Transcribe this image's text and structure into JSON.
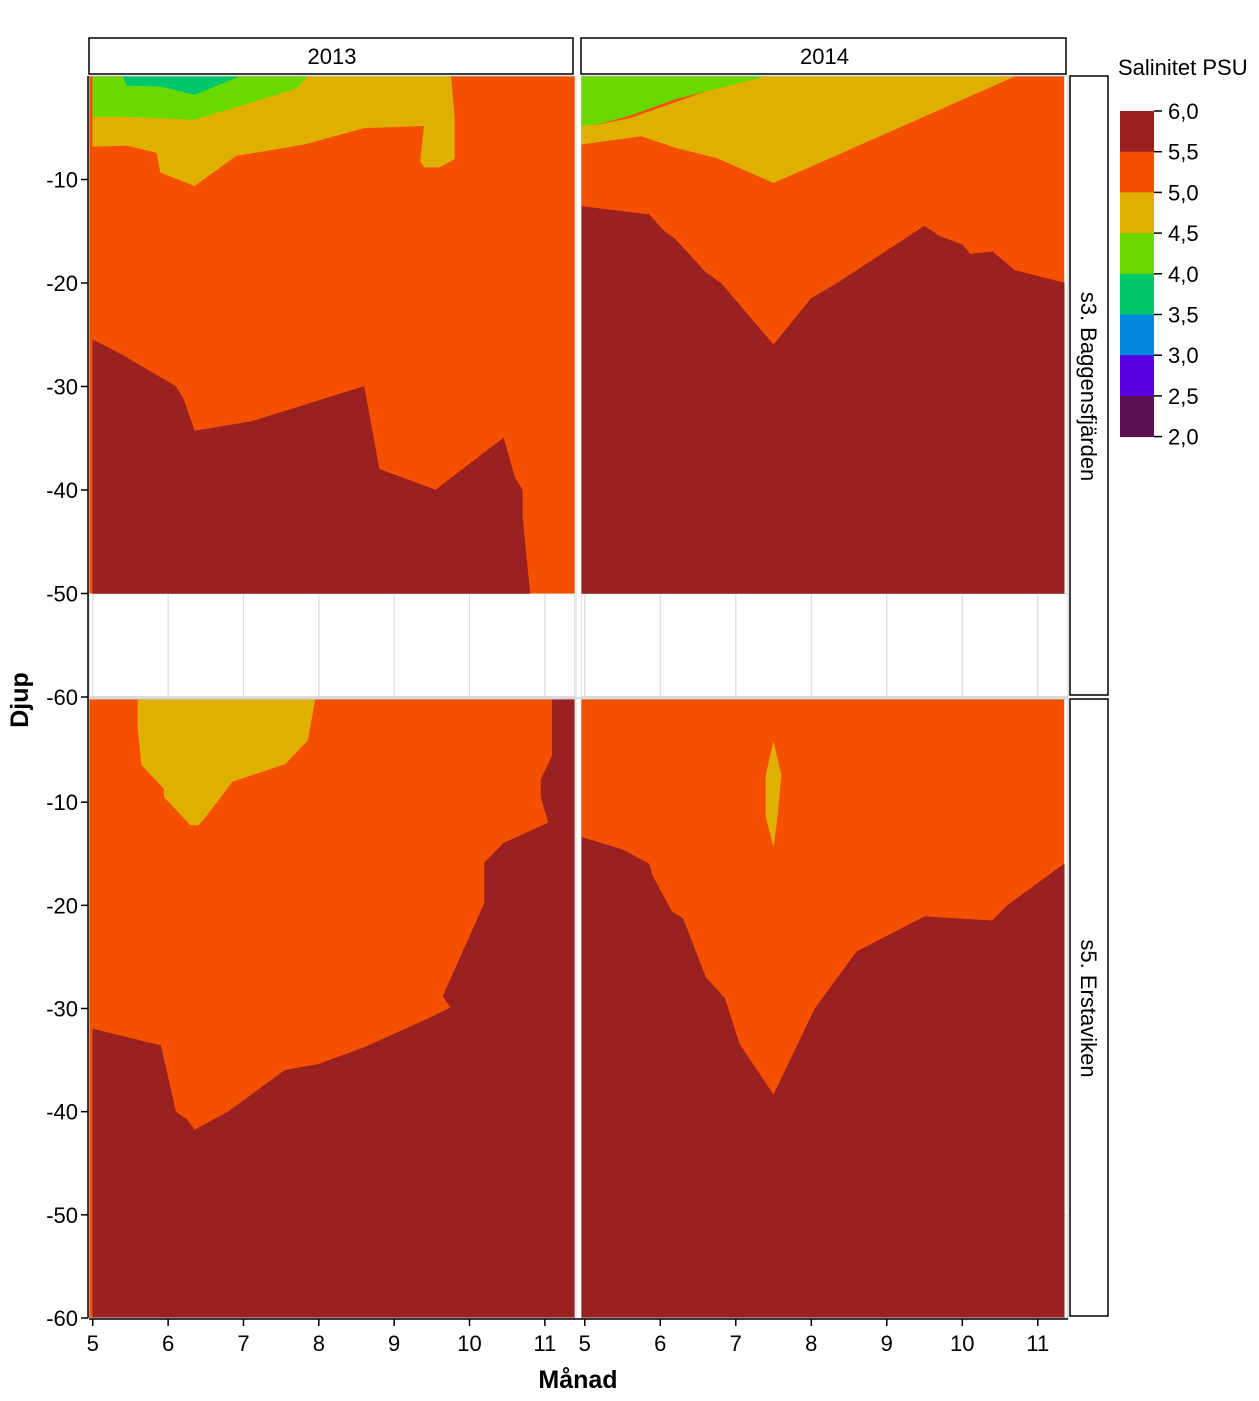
{
  "chart_data": {
    "type": "heatmap",
    "subtype": "filled-contour",
    "xlabel": "Månad",
    "ylabel": "Djup",
    "xlim": [
      4.95,
      11.4
    ],
    "ylim": [
      -60,
      0
    ],
    "x_ticks": [
      5,
      6,
      7,
      8,
      9,
      10,
      11
    ],
    "y_ticks": [
      -10,
      -20,
      -30,
      -40,
      -50,
      -60
    ],
    "legend": {
      "title": "Salinitet PSU",
      "placement": "right",
      "levels": [
        "6,0",
        "5,5",
        "5,0",
        "4,5",
        "4,0",
        "3,5",
        "3,0",
        "2,5",
        "2,0"
      ],
      "colors": [
        "#9b2121",
        "#f55000",
        "#e0b000",
        "#6ad900",
        "#00c86a",
        "#0088dd",
        "#5a00e0",
        "#5a1050"
      ]
    },
    "years": [
      "2013",
      "2014"
    ],
    "stations": [
      "s3. Baggensfjärden",
      "s5. Erstaviken"
    ],
    "panels": [
      {
        "year": "2013",
        "station": "s3. Baggensfjärden",
        "data_xmax": 11.4,
        "data_ymin": -50,
        "base_band": "5,0–5,5",
        "regions": [
          {
            "band": "5,5–6,0",
            "points": [
              [
                5,
                -25.5
              ],
              [
                5.4,
                -27
              ],
              [
                6.1,
                -30
              ],
              [
                6.2,
                -31.2
              ],
              [
                6.35,
                -34.3
              ],
              [
                7.1,
                -33.4
              ],
              [
                8.6,
                -30
              ],
              [
                8.8,
                -38
              ],
              [
                9.55,
                -40
              ],
              [
                10.45,
                -35
              ],
              [
                10.6,
                -38.8
              ],
              [
                10.7,
                -40
              ],
              [
                10.7,
                -42.5
              ],
              [
                10.8,
                -50
              ],
              [
                5,
                -50
              ]
            ]
          },
          {
            "band": "4,5–5,0",
            "points": [
              [
                5,
                0
              ],
              [
                9.75,
                0
              ],
              [
                9.8,
                -4
              ],
              [
                9.8,
                -8
              ],
              [
                9.6,
                -8.8
              ],
              [
                9.4,
                -8.8
              ],
              [
                9.35,
                -8.2
              ],
              [
                9.4,
                -4.8
              ],
              [
                8.6,
                -5
              ],
              [
                7.8,
                -6.6
              ],
              [
                6.9,
                -7.7
              ],
              [
                6.35,
                -10.6
              ],
              [
                5.9,
                -9.3
              ],
              [
                5.85,
                -7.4
              ],
              [
                5.45,
                -6.7
              ],
              [
                5,
                -6.8
              ]
            ]
          },
          {
            "band": "4,0–4,5",
            "points": [
              [
                5,
                0
              ],
              [
                7.85,
                0
              ],
              [
                7.7,
                -1.2
              ],
              [
                6.35,
                -4.2
              ],
              [
                5.4,
                -3.9
              ],
              [
                5,
                -3.9
              ]
            ]
          },
          {
            "band": "3,5–4,0",
            "points": [
              [
                5.4,
                0
              ],
              [
                6.95,
                0
              ],
              [
                6.35,
                -1.8
              ],
              [
                5.9,
                -1
              ],
              [
                5.45,
                -0.9
              ]
            ]
          }
        ]
      },
      {
        "year": "2014",
        "station": "s3. Baggensfjärden",
        "data_xmax": 11.35,
        "data_ymin": -50,
        "base_band": "5,0–5,5",
        "regions": [
          {
            "band": "5,5–6,0",
            "points": [
              [
                4.95,
                -12.6
              ],
              [
                5.85,
                -13.4
              ],
              [
                6.05,
                -15
              ],
              [
                6.2,
                -15.8
              ],
              [
                6.35,
                -17
              ],
              [
                6.6,
                -19
              ],
              [
                6.8,
                -20
              ],
              [
                7.15,
                -23
              ],
              [
                7.5,
                -26
              ],
              [
                8,
                -21.5
              ],
              [
                8.35,
                -20
              ],
              [
                9.5,
                -14.5
              ],
              [
                9.7,
                -15.5
              ],
              [
                10,
                -16.3
              ],
              [
                10.1,
                -17.2
              ],
              [
                10.4,
                -17
              ],
              [
                10.7,
                -18.8
              ],
              [
                11.35,
                -20
              ],
              [
                11.35,
                -50
              ],
              [
                4.95,
                -50
              ]
            ]
          },
          {
            "band": "4,5–5,0",
            "points": [
              [
                4.95,
                -4.8
              ],
              [
                5.2,
                -4.7
              ],
              [
                5.6,
                -4.1
              ],
              [
                6.3,
                -2.3
              ],
              [
                7.2,
                0
              ],
              [
                10.7,
                0
              ],
              [
                9.4,
                -4.2
              ],
              [
                8.1,
                -8.4
              ],
              [
                7.5,
                -10.3
              ],
              [
                6.75,
                -7.9
              ],
              [
                6.2,
                -6.9
              ],
              [
                5.75,
                -5.8
              ],
              [
                4.95,
                -6.6
              ]
            ]
          },
          {
            "band": "4,0–4,5",
            "points": [
              [
                4.95,
                0
              ],
              [
                7.4,
                0
              ],
              [
                6.2,
                -2.2
              ],
              [
                5.6,
                -3.8
              ],
              [
                5.2,
                -4.6
              ],
              [
                4.95,
                -4.8
              ]
            ]
          }
        ]
      },
      {
        "year": "2013",
        "station": "s5. Erstaviken",
        "data_xmax": 11.4,
        "data_ymin": -60,
        "base_band": "5,0–5,5",
        "regions": [
          {
            "band": "5,5–6,0",
            "points": [
              [
                5,
                -32
              ],
              [
                5.9,
                -33.6
              ],
              [
                6.1,
                -40
              ],
              [
                6.25,
                -40.8
              ],
              [
                6.35,
                -41.8
              ],
              [
                6.8,
                -40
              ],
              [
                7.55,
                -36
              ],
              [
                8,
                -35.4
              ],
              [
                8.6,
                -33.8
              ],
              [
                9.45,
                -31
              ],
              [
                9.75,
                -29.9
              ],
              [
                9.65,
                -28.8
              ],
              [
                10.2,
                -19.8
              ],
              [
                10.2,
                -15.9
              ],
              [
                10.45,
                -14
              ],
              [
                11.05,
                -12
              ],
              [
                10.95,
                -9.5
              ],
              [
                10.95,
                -7.8
              ],
              [
                11.1,
                -5.5
              ],
              [
                11.1,
                0
              ],
              [
                11.4,
                0
              ],
              [
                11.4,
                -60
              ],
              [
                5,
                -60
              ]
            ]
          },
          {
            "band": "4,5–5,0",
            "points": [
              [
                5.6,
                0
              ],
              [
                7.95,
                0
              ],
              [
                7.85,
                -4
              ],
              [
                7.55,
                -6.3
              ],
              [
                6.85,
                -8
              ],
              [
                6.5,
                -11.4
              ],
              [
                6.4,
                -12.2
              ],
              [
                6.3,
                -12.2
              ],
              [
                5.95,
                -9.5
              ],
              [
                5.95,
                -8.7
              ],
              [
                5.65,
                -6.4
              ],
              [
                5.6,
                -2.8
              ]
            ]
          }
        ]
      },
      {
        "year": "2014",
        "station": "s5. Erstaviken",
        "data_xmax": 11.35,
        "data_ymin": -60,
        "base_band": "5,0–5,5",
        "regions": [
          {
            "band": "5,5–6,0",
            "points": [
              [
                4.95,
                -13.4
              ],
              [
                5.5,
                -14.6
              ],
              [
                5.85,
                -16
              ],
              [
                5.9,
                -17.2
              ],
              [
                6.15,
                -20.6
              ],
              [
                6.3,
                -21.3
              ],
              [
                6.6,
                -27
              ],
              [
                6.85,
                -29
              ],
              [
                7.05,
                -33.5
              ],
              [
                7.5,
                -38.4
              ],
              [
                8.05,
                -30
              ],
              [
                8.6,
                -24.5
              ],
              [
                9.5,
                -21.1
              ],
              [
                10.4,
                -21.5
              ],
              [
                10.6,
                -20
              ],
              [
                11.35,
                -16
              ],
              [
                11.35,
                -60
              ],
              [
                4.95,
                -60
              ]
            ]
          },
          {
            "band": "4,5–5,0",
            "points": [
              [
                7.5,
                -4.2
              ],
              [
                7.6,
                -7.4
              ],
              [
                7.55,
                -11.4
              ],
              [
                7.5,
                -14.2
              ],
              [
                7.4,
                -11.4
              ],
              [
                7.4,
                -7.4
              ]
            ]
          }
        ]
      }
    ]
  }
}
